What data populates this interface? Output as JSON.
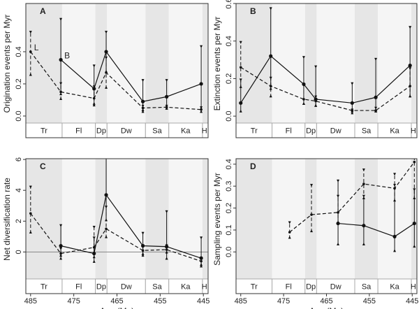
{
  "stages": {
    "names": [
      "Tr",
      "Fl",
      "Dp",
      "Dw",
      "Sa",
      "Ka",
      "Hi"
    ],
    "boundaries": [
      486.1,
      477.7,
      470.0,
      467.3,
      458.4,
      453.0,
      445.2,
      443.9
    ]
  },
  "chart_data": [
    {
      "type": "errorline",
      "title": "A",
      "y_label": "Origination events per Myr",
      "xlim": [
        486.1,
        443.9
      ],
      "ylim": [
        -0.135,
        0.7
      ],
      "yticks": [
        {
          "value": 0,
          "label": "0.0"
        },
        {
          "value": 0.2,
          "label": "0.2"
        },
        {
          "value": 0.4,
          "label": "0.4"
        }
      ],
      "series": [
        {
          "style": "dashed",
          "x": [
            485,
            478,
            470.3,
            467.5,
            459,
            453.5,
            445.5
          ],
          "values": [
            0.4,
            0.15,
            0.11,
            0.27,
            0.05,
            0.055,
            0.04
          ],
          "lower": [
            0.25,
            0.1,
            0.06,
            0.17,
            0.03,
            0.04,
            0.02
          ],
          "upper": [
            0.53,
            0.21,
            0.19,
            0.37,
            0.07,
            0.07,
            0.06
          ]
        },
        {
          "style": "solid",
          "x": [
            478,
            470.3,
            467.5,
            459,
            453.5,
            445.5
          ],
          "values": [
            0.35,
            0.17,
            0.4,
            0.09,
            0.12,
            0.2
          ],
          "lower": [
            0.13,
            0.07,
            0.27,
            0.02,
            0.04,
            0.04
          ],
          "upper": [
            0.61,
            0.32,
            0.53,
            0.23,
            0.23,
            0.44
          ]
        }
      ],
      "annotations": [
        "L",
        "B"
      ]
    },
    {
      "type": "errorline",
      "title": "B",
      "y_label": "Extinction events per Myr",
      "xlim": [
        486.1,
        443.9
      ],
      "ylim": [
        -0.115,
        0.6
      ],
      "yticks": [
        {
          "value": 0,
          "label": "0.0"
        },
        {
          "value": 0.2,
          "label": "0.2"
        },
        {
          "value": 0.4,
          "label": "0.4"
        },
        {
          "value": 0.6,
          "label": "0.6"
        }
      ],
      "series": [
        {
          "style": "dashed",
          "x": [
            485,
            478,
            470.3,
            467.5,
            459,
            453.5,
            445.5
          ],
          "values": [
            0.26,
            0.16,
            0.09,
            0.08,
            0.03,
            0.03,
            0.16
          ],
          "lower": [
            0.15,
            0.1,
            0.06,
            0.05,
            0.02,
            0.02,
            0.1
          ],
          "upper": [
            0.4,
            0.21,
            0.17,
            0.11,
            0.04,
            0.05,
            0.26
          ]
        },
        {
          "style": "solid",
          "x": [
            485,
            478,
            470.3,
            467.5,
            459,
            453.5,
            445.5
          ],
          "values": [
            0.07,
            0.32,
            0.17,
            0.09,
            0.07,
            0.1,
            0.27
          ],
          "lower": [
            0.02,
            0.14,
            0.06,
            0.05,
            0.01,
            0.02,
            0.1
          ],
          "upper": [
            0.2,
            0.58,
            0.32,
            0.27,
            0.18,
            0.31,
            0.48
          ]
        }
      ]
    },
    {
      "type": "errorline",
      "title": "C",
      "y_label": "Net diversification rate",
      "x_label": "Age (Ma)",
      "xlim": [
        486.1,
        443.9
      ],
      "ylim": [
        -2.7,
        6.05
      ],
      "hline": 0,
      "xticks": [
        485,
        475,
        465,
        455,
        445
      ],
      "yticks": [
        0,
        2,
        4,
        6
      ],
      "series": [
        {
          "style": "dashed",
          "x": [
            485,
            478,
            470.3,
            467.5,
            459,
            453.5,
            445.5
          ],
          "values": [
            2.5,
            -0.1,
            0.3,
            1.5,
            0.1,
            0.15,
            -0.6
          ],
          "lower": [
            1.2,
            -0.5,
            -0.4,
            0.9,
            -0.2,
            -0.1,
            -0.9
          ],
          "upper": [
            4.3,
            0.3,
            1.7,
            3.0,
            0.5,
            0.5,
            -0.3
          ]
        },
        {
          "style": "solid",
          "x": [
            478,
            470.3,
            467.5,
            459,
            453.5,
            445.5
          ],
          "values": [
            0.4,
            -0.1,
            3.7,
            0.4,
            0.35,
            -0.4
          ],
          "lower": [
            -0.3,
            -0.7,
            2.0,
            -0.3,
            -0.5,
            -1.0
          ],
          "upper": [
            1.8,
            1.0,
            6.9,
            1.3,
            2.7,
            1.0
          ]
        }
      ]
    },
    {
      "type": "errorline",
      "title": "D",
      "y_label": "Sampling events per Myr",
      "x_label": "Age (Ma)",
      "xlim": [
        486.1,
        443.9
      ],
      "ylim": [
        -0.19,
        0.425
      ],
      "xticks": [
        485,
        475,
        465,
        455,
        445
      ],
      "yticks": [
        {
          "value": 0,
          "label": "0.0"
        },
        {
          "value": 0.1,
          "label": "0.1"
        },
        {
          "value": 0.2,
          "label": "0.2"
        },
        {
          "value": 0.3,
          "label": "0.3"
        },
        {
          "value": 0.4,
          "label": "0.4"
        }
      ],
      "series": [
        {
          "style": "dashed",
          "x": [
            473.6,
            468.5,
            462.3,
            456.3,
            449.1,
            444.5
          ],
          "values": [
            0.09,
            0.17,
            0.18,
            0.31,
            0.29,
            0.41
          ],
          "lower": [
            0.06,
            0.09,
            0.13,
            0.24,
            0.23,
            0.24
          ],
          "upper": [
            0.14,
            0.31,
            0.26,
            0.38,
            0.36,
            0.75
          ]
        },
        {
          "style": "solid",
          "x": [
            462.3,
            456.3,
            449.1,
            444.5
          ],
          "values": [
            0.13,
            0.12,
            0.07,
            0.13
          ],
          "lower": [
            0.03,
            0.03,
            0.0,
            0.02
          ],
          "upper": [
            0.33,
            0.26,
            0.31,
            0.29
          ]
        }
      ]
    }
  ]
}
